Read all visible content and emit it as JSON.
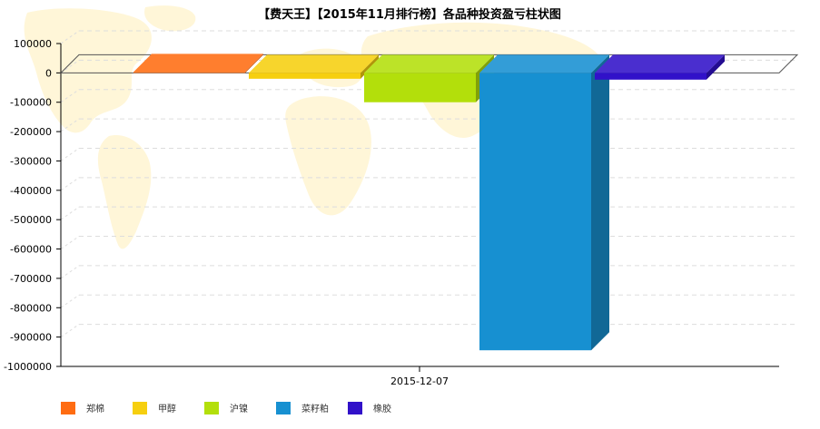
{
  "chart_data": {
    "type": "bar",
    "title": "【费天王】【2015年11月排行榜】各品种投资盈亏柱状图",
    "categories": [
      "2015-12-07"
    ],
    "series": [
      {
        "name": "郑棉",
        "color": "#FF6C12",
        "values": [
          3000
        ]
      },
      {
        "name": "甲醇",
        "color": "#F6CF0F",
        "values": [
          -20000
        ]
      },
      {
        "name": "沪镍",
        "color": "#B3DF0B",
        "values": [
          -100000
        ]
      },
      {
        "name": "菜籽粕",
        "color": "#1790D1",
        "values": [
          -945000
        ]
      },
      {
        "name": "橡胶",
        "color": "#3111C9",
        "values": [
          -23000
        ]
      }
    ],
    "ylim": [
      -1000000,
      100000
    ],
    "yticks": [
      100000,
      0,
      -100000,
      -200000,
      -300000,
      -400000,
      -500000,
      -600000,
      -700000,
      -800000,
      -900000,
      -1000000
    ],
    "xlabel": "",
    "ylabel": "",
    "grid": true,
    "legend_position": "bottom-left",
    "background": "world-map"
  }
}
